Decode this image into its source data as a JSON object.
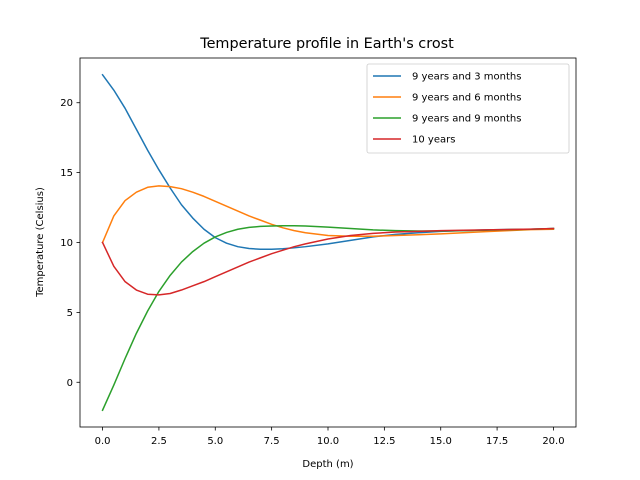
{
  "chart_data": {
    "type": "line",
    "title": "Temperature profile in Earth's crost",
    "xlabel": "Depth (m)",
    "ylabel": "Temperature (Celsius)",
    "xlim": [
      -1,
      21
    ],
    "ylim": [
      -3.2,
      23.2
    ],
    "xticks": [
      0,
      2.5,
      5,
      7.5,
      10,
      12.5,
      15,
      17.5,
      20
    ],
    "xtick_labels": [
      "0.0",
      "2.5",
      "5.0",
      "7.5",
      "10.0",
      "12.5",
      "15.0",
      "17.5",
      "20.0"
    ],
    "yticks": [
      0,
      5,
      10,
      15,
      20
    ],
    "ytick_labels": [
      "0",
      "5",
      "10",
      "15",
      "20"
    ],
    "grid": false,
    "legend_position": "top-right",
    "series": [
      {
        "name": "9 years and 3 months",
        "color": "#1f77b4",
        "x": [
          0,
          0.5,
          1,
          1.5,
          2,
          2.5,
          3,
          3.5,
          4,
          4.5,
          5,
          5.5,
          6,
          6.5,
          7,
          7.5,
          8,
          8.5,
          9,
          10,
          11,
          12,
          13,
          14,
          15,
          16,
          17,
          18,
          19,
          20
        ],
        "y": [
          22.0,
          20.9,
          19.6,
          18.1,
          16.6,
          15.2,
          13.9,
          12.7,
          11.75,
          10.95,
          10.35,
          9.95,
          9.7,
          9.57,
          9.52,
          9.52,
          9.55,
          9.62,
          9.7,
          9.9,
          10.15,
          10.4,
          10.58,
          10.7,
          10.8,
          10.85,
          10.9,
          10.93,
          10.95,
          11.0
        ]
      },
      {
        "name": "9 years and 6 months",
        "color": "#ff7f0e",
        "x": [
          0,
          0.5,
          1,
          1.5,
          2,
          2.5,
          3,
          3.5,
          4,
          4.5,
          5,
          5.5,
          6,
          6.5,
          7,
          7.5,
          8,
          8.5,
          9,
          10,
          11,
          12,
          13,
          14,
          15,
          16,
          17,
          18,
          19,
          20
        ],
        "y": [
          10.0,
          11.9,
          13.0,
          13.6,
          13.95,
          14.05,
          14.0,
          13.85,
          13.6,
          13.3,
          12.95,
          12.6,
          12.25,
          11.9,
          11.6,
          11.3,
          11.05,
          10.85,
          10.7,
          10.5,
          10.45,
          10.45,
          10.5,
          10.55,
          10.62,
          10.7,
          10.78,
          10.85,
          10.92,
          10.95
        ]
      },
      {
        "name": "9 years and 9 months",
        "color": "#2ca02c",
        "x": [
          0,
          0.5,
          1,
          1.5,
          2,
          2.5,
          3,
          3.5,
          4,
          4.5,
          5,
          5.5,
          6,
          6.5,
          7,
          7.5,
          8,
          8.5,
          9,
          10,
          11,
          12,
          13,
          14,
          15,
          16,
          17,
          18,
          19,
          20
        ],
        "y": [
          -2.0,
          -0.2,
          1.7,
          3.5,
          5.1,
          6.5,
          7.65,
          8.6,
          9.35,
          9.95,
          10.4,
          10.72,
          10.95,
          11.08,
          11.15,
          11.18,
          11.2,
          11.2,
          11.18,
          11.1,
          11.0,
          10.9,
          10.85,
          10.82,
          10.82,
          10.85,
          10.88,
          10.92,
          10.95,
          11.0
        ]
      },
      {
        "name": "10 years",
        "color": "#d62728",
        "x": [
          0,
          0.5,
          1,
          1.5,
          2,
          2.5,
          3,
          3.5,
          4,
          4.5,
          5,
          5.5,
          6,
          6.5,
          7,
          7.5,
          8,
          8.5,
          9,
          10,
          11,
          12,
          13,
          14,
          15,
          16,
          17,
          18,
          19,
          20
        ],
        "y": [
          10.0,
          8.3,
          7.2,
          6.6,
          6.3,
          6.25,
          6.35,
          6.6,
          6.9,
          7.2,
          7.55,
          7.9,
          8.25,
          8.6,
          8.9,
          9.2,
          9.45,
          9.7,
          9.9,
          10.25,
          10.5,
          10.65,
          10.75,
          10.8,
          10.85,
          10.88,
          10.9,
          10.93,
          10.96,
          11.0
        ]
      }
    ]
  }
}
